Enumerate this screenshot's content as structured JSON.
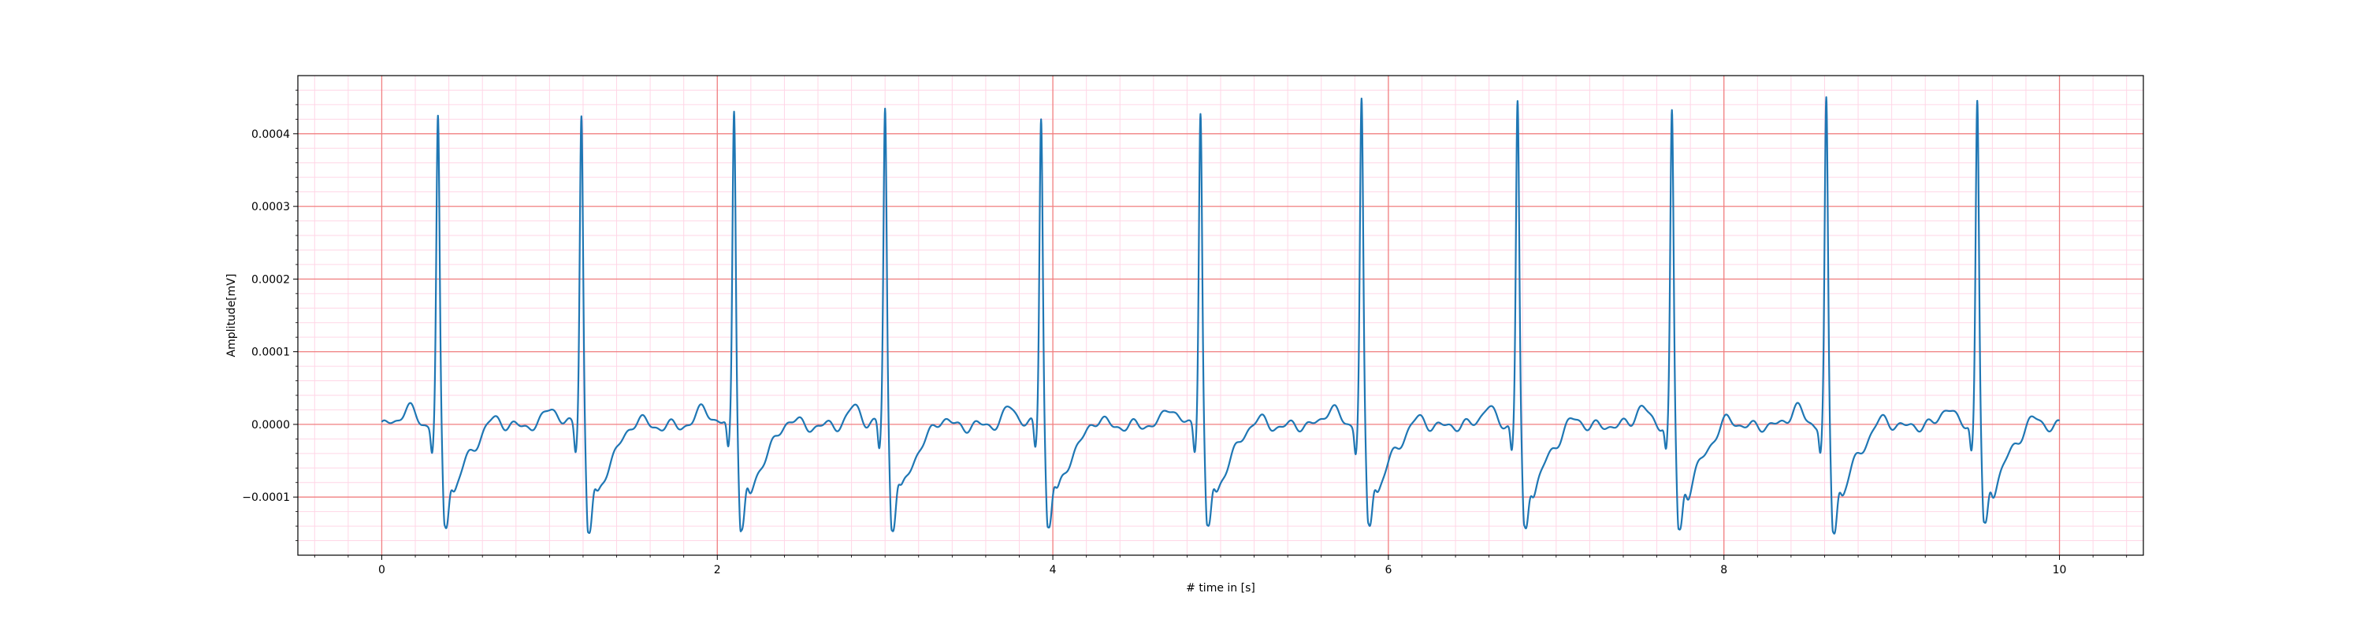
{
  "chart_data": {
    "type": "line",
    "title": "",
    "xlabel": "# time in [s]",
    "ylabel": "Amplitude[mV]",
    "xlim": [
      -0.5,
      10.5
    ],
    "ylim": [
      -0.00018,
      0.00048
    ],
    "x_ticks": [
      0,
      2,
      4,
      6,
      8,
      10
    ],
    "x_tick_labels": [
      "0",
      "2",
      "4",
      "6",
      "8",
      "10"
    ],
    "y_ticks": [
      -0.0001,
      0.0,
      0.0001,
      0.0002,
      0.0003,
      0.0004
    ],
    "y_tick_labels": [
      "−0.0001",
      "0.0000",
      "0.0001",
      "0.0002",
      "0.0003",
      "0.0004"
    ],
    "grid": true,
    "major_grid_color": "#f08080",
    "minor_grid_color": "#ffd6e6",
    "line_color": "#1f77b4",
    "series": [
      {
        "name": "",
        "peaks": [
          {
            "t": 0.335,
            "r": 0.000418,
            "s": -0.00014
          },
          {
            "t": 1.19,
            "r": 0.000429,
            "s": -0.00015
          },
          {
            "t": 2.1,
            "r": 0.000438,
            "s": -0.000148
          },
          {
            "t": 3.0,
            "r": 0.000436,
            "s": -0.000141
          },
          {
            "t": 3.93,
            "r": 0.000427,
            "s": -0.000142
          },
          {
            "t": 4.88,
            "r": 0.000434,
            "s": -0.000145
          },
          {
            "t": 5.84,
            "r": 0.000444,
            "s": -0.00014
          },
          {
            "t": 6.77,
            "r": 0.000443,
            "s": -0.000145
          },
          {
            "t": 7.69,
            "r": 0.000429,
            "s": -0.000147
          },
          {
            "t": 8.61,
            "r": 0.000442,
            "s": -0.000147
          },
          {
            "t": 9.51,
            "r": 0.000447,
            "s": -0.000143
          }
        ],
        "t_range": [
          0,
          10
        ]
      }
    ]
  }
}
